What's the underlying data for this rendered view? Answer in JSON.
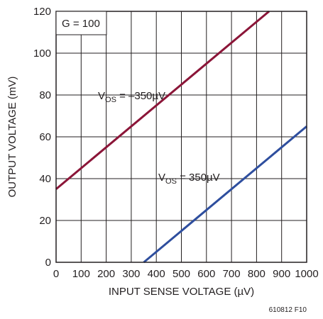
{
  "chart_data": {
    "type": "line",
    "xlabel": "INPUT SENSE VOLTAGE (µV)",
    "ylabel": "OUTPUT VOLTAGE (mV)",
    "xlim": [
      0,
      1000
    ],
    "ylim": [
      0,
      120
    ],
    "xticks": [
      0,
      100,
      200,
      300,
      400,
      500,
      600,
      700,
      800,
      900,
      1000
    ],
    "yticks": [
      0,
      20,
      40,
      60,
      80,
      100,
      120
    ],
    "grid": true,
    "series": [
      {
        "label_main": "V",
        "label_sub": "OS",
        "label_rest": " = –350µV",
        "color": "#8b1538",
        "x": [
          0,
          850
        ],
        "y": [
          35,
          120
        ]
      },
      {
        "label_main": "V",
        "label_sub": "OS",
        "label_rest": " = 350µV",
        "color": "#2e4e9e",
        "x": [
          350,
          1000
        ],
        "y": [
          0,
          65
        ]
      }
    ],
    "annotations": {
      "gain": "G = 100"
    }
  },
  "figure_id": "610812 F10"
}
